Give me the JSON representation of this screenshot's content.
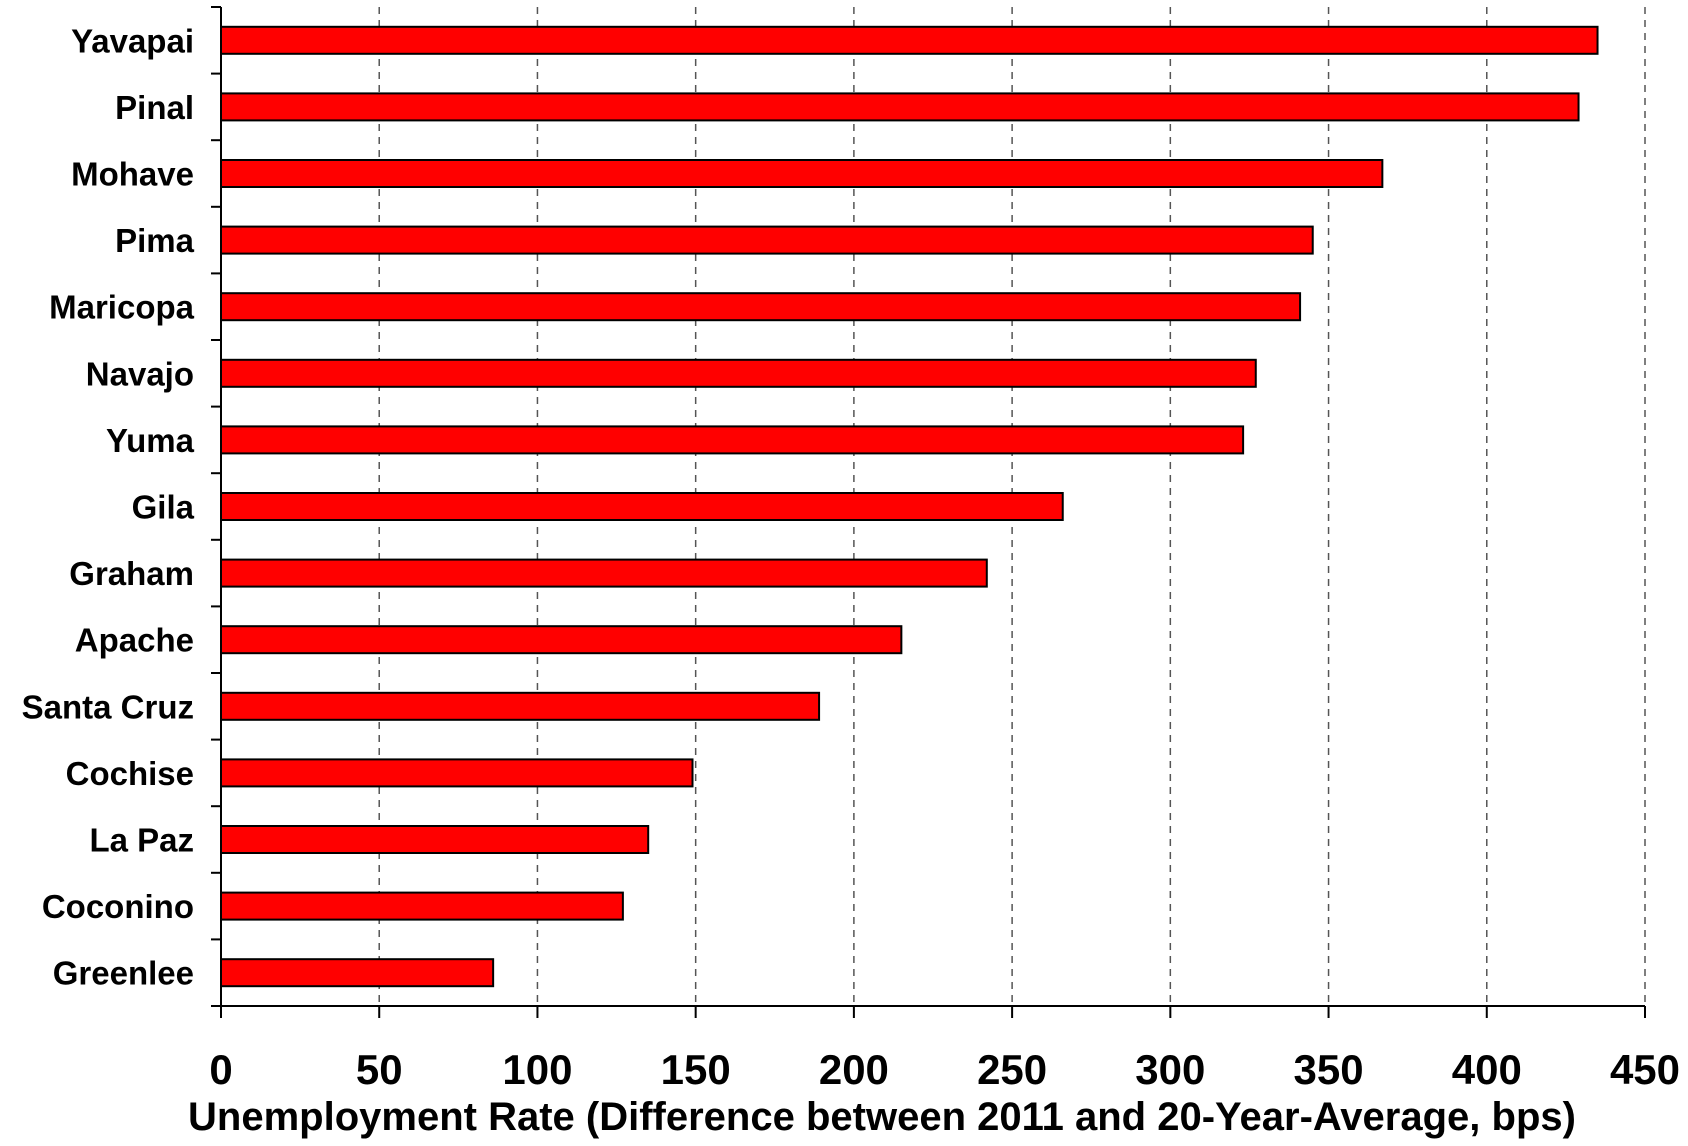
{
  "chart_data": {
    "type": "bar",
    "orientation": "horizontal",
    "title": "",
    "xlabel": "Unemployment Rate (Difference between 2011 and 20-Year-Average, bps)",
    "ylabel": "",
    "xlim": [
      0,
      450
    ],
    "xticks": [
      0,
      50,
      100,
      150,
      200,
      250,
      300,
      350,
      400,
      450
    ],
    "grid": "vertical dashed",
    "legend": "none",
    "bar_color": "#ff0000",
    "bar_edge_color": "#000000",
    "categories": [
      "Yavapai",
      "Pinal",
      "Mohave",
      "Pima",
      "Maricopa",
      "Navajo",
      "Yuma",
      "Gila",
      "Graham",
      "Apache",
      "Santa Cruz",
      "Cochise",
      "La Paz",
      "Coconino",
      "Greenlee"
    ],
    "values": [
      435,
      429,
      367,
      345,
      341,
      327,
      323,
      266,
      242,
      215,
      189,
      149,
      135,
      127,
      86
    ]
  }
}
